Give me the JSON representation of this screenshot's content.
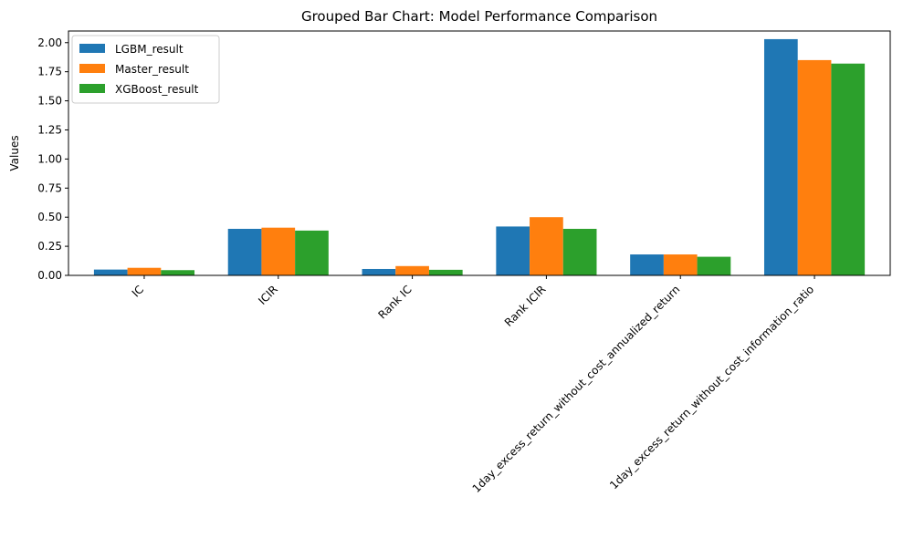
{
  "chart_data": {
    "type": "bar",
    "title": "Grouped Bar Chart: Model Performance Comparison",
    "xlabel": "",
    "ylabel": "Values",
    "ylim": [
      0,
      2.1
    ],
    "yticks": [
      "0.00",
      "0.25",
      "0.50",
      "0.75",
      "1.00",
      "1.25",
      "1.50",
      "1.75",
      "2.00"
    ],
    "grid": false,
    "legend_position": "top-left",
    "categories": [
      "IC",
      "ICIR",
      "Rank IC",
      "Rank ICIR",
      "1day_excess_return_without_cost_annualized_return",
      "1day_excess_return_without_cost_information_ratio"
    ],
    "series": [
      {
        "name": "LGBM_result",
        "color": "#1f77b4",
        "values": [
          0.05,
          0.4,
          0.055,
          0.42,
          0.18,
          2.03
        ]
      },
      {
        "name": "Master_result",
        "color": "#ff7f0e",
        "values": [
          0.065,
          0.41,
          0.08,
          0.5,
          0.18,
          1.85
        ]
      },
      {
        "name": "XGBoost_result",
        "color": "#2ca02c",
        "values": [
          0.045,
          0.385,
          0.048,
          0.4,
          0.16,
          1.82
        ]
      }
    ]
  }
}
